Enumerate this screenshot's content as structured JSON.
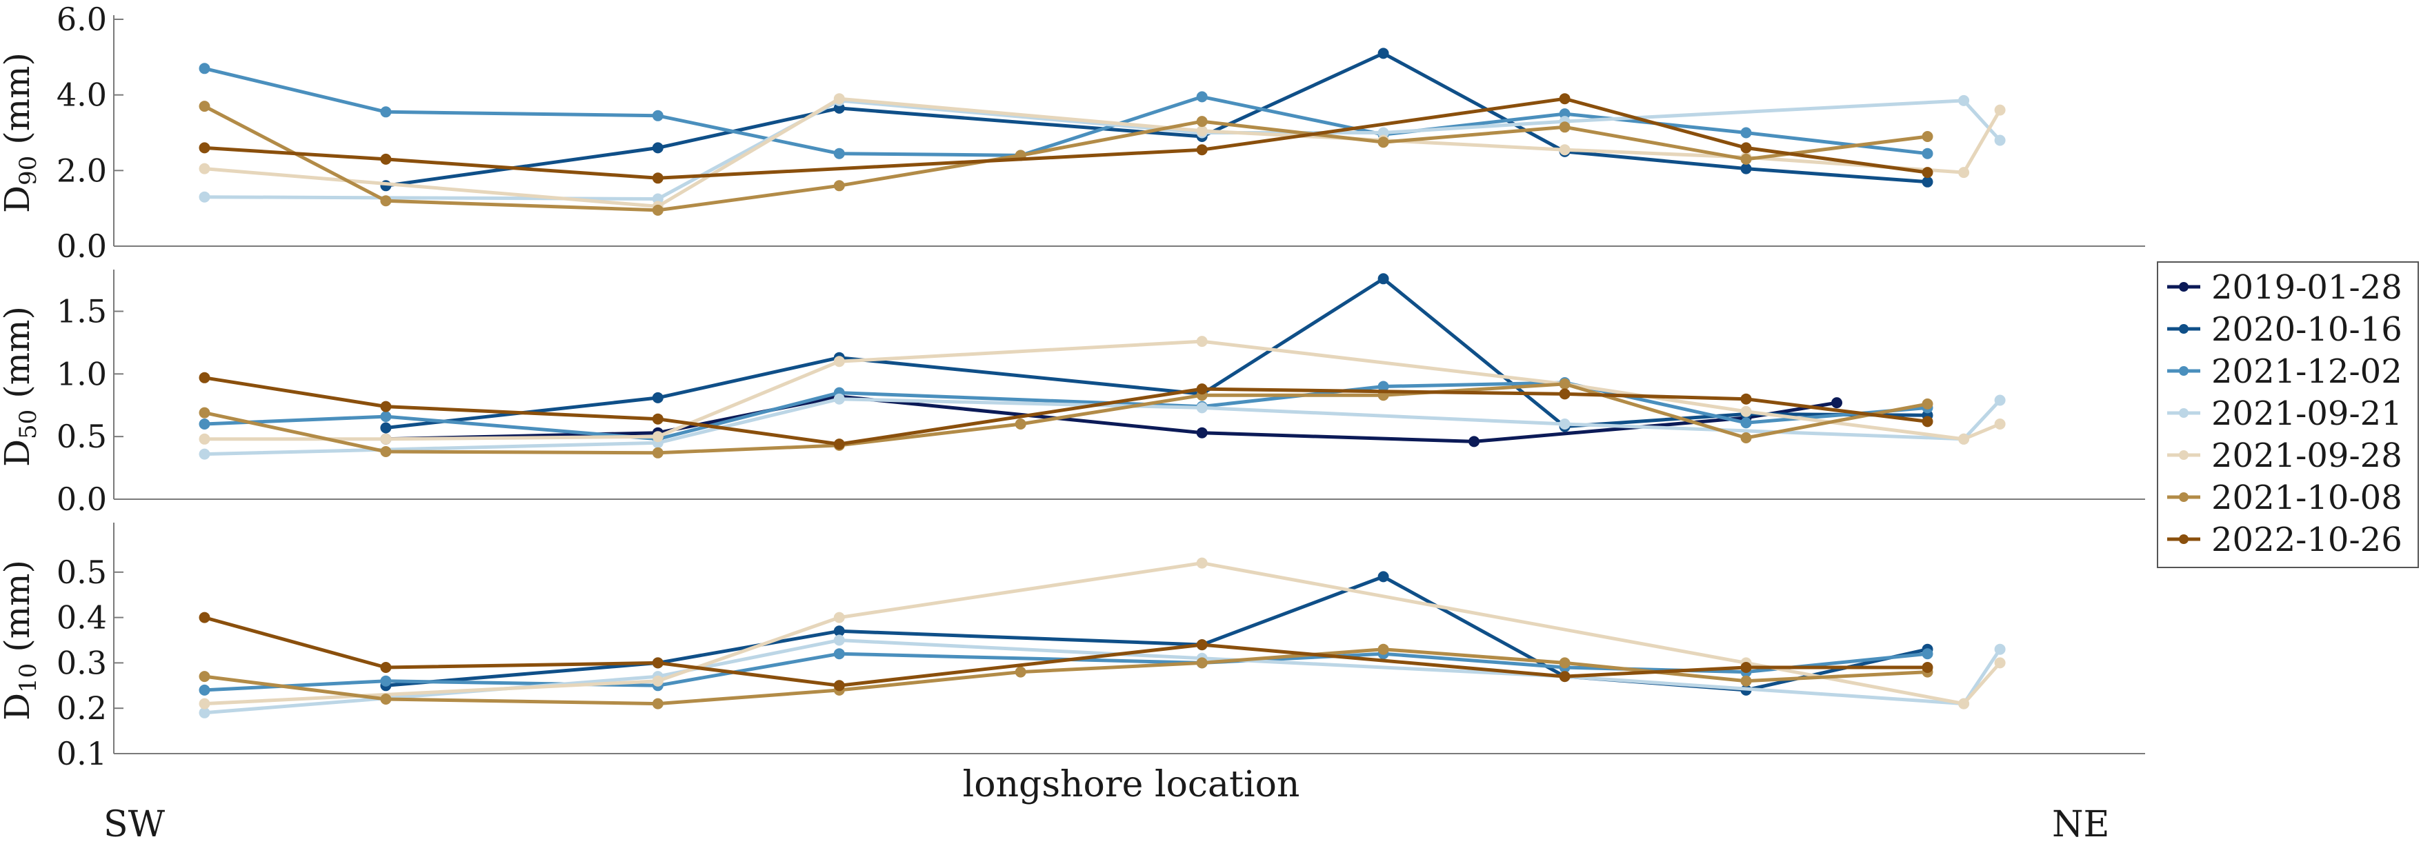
{
  "chart_data": {
    "type": "line",
    "xlabel": "longshore location",
    "x_end_labels": [
      "SW",
      "NE"
    ],
    "legend_placement": "right",
    "grid": false,
    "series_names": [
      "2019-01-28",
      "2020-10-16",
      "2021-12-02",
      "2021-09-21",
      "2021-09-28",
      "2021-10-08",
      "2022-10-26"
    ],
    "series_colors": [
      "#0b1a57",
      "#0f4f88",
      "#4a8fbd",
      "#bcd6e6",
      "#e6d6bb",
      "#b28b47",
      "#8a4f0c"
    ],
    "panels": [
      {
        "ylabel_base": "D",
        "ylabel_sub": "90",
        "ylabel_unit": " (mm)",
        "ylim": [
          0,
          6
        ],
        "yticks": [
          "0.0",
          "2.0",
          "4.0",
          "6.0"
        ],
        "ytick_values": [
          0,
          2,
          4,
          6
        ],
        "series": [
          {
            "name": "2019-01-28",
            "points": []
          },
          {
            "name": "2020-10-16",
            "points": [
              [
                1.5,
                1.6
              ],
              [
                3,
                2.6
              ],
              [
                4,
                3.65
              ],
              [
                6,
                2.9
              ],
              [
                7,
                5.1
              ],
              [
                8,
                2.5
              ],
              [
                9,
                2.05
              ],
              [
                10,
                1.7
              ]
            ]
          },
          {
            "name": "2021-12-02",
            "points": [
              [
                0.5,
                4.7
              ],
              [
                1.5,
                3.55
              ],
              [
                3,
                3.45
              ],
              [
                4,
                2.45
              ],
              [
                5,
                2.4
              ],
              [
                6,
                3.95
              ],
              [
                7,
                2.95
              ],
              [
                8,
                3.5
              ],
              [
                9,
                3.0
              ],
              [
                10,
                2.45
              ]
            ]
          },
          {
            "name": "2021-09-21",
            "points": [
              [
                0.5,
                1.3
              ],
              [
                3,
                1.25
              ],
              [
                4,
                3.85
              ],
              [
                6,
                3.0
              ],
              [
                7,
                3.0
              ],
              [
                8,
                3.3
              ],
              [
                10.2,
                3.85
              ],
              [
                10.4,
                2.8
              ]
            ]
          },
          {
            "name": "2021-09-28",
            "points": [
              [
                0.5,
                2.05
              ],
              [
                3,
                1.05
              ],
              [
                4,
                3.9
              ],
              [
                6,
                3.05
              ],
              [
                7,
                2.8
              ],
              [
                8,
                2.55
              ],
              [
                9,
                2.35
              ],
              [
                10.2,
                1.95
              ],
              [
                10.4,
                3.6
              ]
            ]
          },
          {
            "name": "2021-10-08",
            "points": [
              [
                0.5,
                3.7
              ],
              [
                1.5,
                1.2
              ],
              [
                3,
                0.95
              ],
              [
                4,
                1.6
              ],
              [
                5,
                2.4
              ],
              [
                6,
                3.3
              ],
              [
                7,
                2.75
              ],
              [
                8,
                3.15
              ],
              [
                9,
                2.3
              ],
              [
                10,
                2.9
              ]
            ]
          },
          {
            "name": "2022-10-26",
            "points": [
              [
                0.5,
                2.6
              ],
              [
                1.5,
                2.3
              ],
              [
                3,
                1.8
              ],
              [
                6,
                2.55
              ],
              [
                8,
                3.9
              ],
              [
                9,
                2.6
              ],
              [
                10,
                1.95
              ]
            ]
          }
        ]
      },
      {
        "ylabel_base": "D",
        "ylabel_sub": "50",
        "ylabel_unit": " (mm)",
        "ylim": [
          0,
          1.8
        ],
        "yticks": [
          "0.0",
          "0.5",
          "1.0",
          "1.5"
        ],
        "ytick_values": [
          0,
          0.5,
          1.0,
          1.5
        ],
        "series": [
          {
            "name": "2019-01-28",
            "points": [
              [
                1.5,
                0.48
              ],
              [
                3,
                0.53
              ],
              [
                4,
                0.82
              ],
              [
                6,
                0.53
              ],
              [
                7.5,
                0.46
              ],
              [
                9,
                0.65
              ],
              [
                9.5,
                0.77
              ]
            ]
          },
          {
            "name": "2020-10-16",
            "points": [
              [
                1.5,
                0.57
              ],
              [
                3,
                0.81
              ],
              [
                4,
                1.13
              ],
              [
                6,
                0.84
              ],
              [
                7,
                1.76
              ],
              [
                8,
                0.58
              ],
              [
                9,
                0.68
              ],
              [
                10,
                0.67
              ]
            ]
          },
          {
            "name": "2021-12-02",
            "points": [
              [
                0.5,
                0.6
              ],
              [
                1.5,
                0.66
              ],
              [
                3,
                0.48
              ],
              [
                4,
                0.85
              ],
              [
                6,
                0.74
              ],
              [
                7,
                0.9
              ],
              [
                8,
                0.93
              ],
              [
                9,
                0.61
              ],
              [
                10,
                0.73
              ]
            ]
          },
          {
            "name": "2021-09-21",
            "points": [
              [
                0.5,
                0.36
              ],
              [
                3,
                0.45
              ],
              [
                4,
                0.8
              ],
              [
                6,
                0.73
              ],
              [
                8,
                0.6
              ],
              [
                10.2,
                0.48
              ],
              [
                10.4,
                0.79
              ]
            ]
          },
          {
            "name": "2021-09-28",
            "points": [
              [
                0.5,
                0.48
              ],
              [
                1.5,
                0.48
              ],
              [
                3,
                0.5
              ],
              [
                4,
                1.1
              ],
              [
                6,
                1.26
              ],
              [
                8,
                0.92
              ],
              [
                9,
                0.7
              ],
              [
                10.2,
                0.48
              ],
              [
                10.4,
                0.6
              ]
            ]
          },
          {
            "name": "2021-10-08",
            "points": [
              [
                0.5,
                0.69
              ],
              [
                1.5,
                0.38
              ],
              [
                3,
                0.37
              ],
              [
                4,
                0.43
              ],
              [
                5,
                0.6
              ],
              [
                6,
                0.83
              ],
              [
                7,
                0.83
              ],
              [
                8,
                0.92
              ],
              [
                9,
                0.49
              ],
              [
                10,
                0.76
              ]
            ]
          },
          {
            "name": "2022-10-26",
            "points": [
              [
                0.5,
                0.97
              ],
              [
                1.5,
                0.74
              ],
              [
                3,
                0.64
              ],
              [
                4,
                0.44
              ],
              [
                6,
                0.88
              ],
              [
                8,
                0.84
              ],
              [
                9,
                0.8
              ],
              [
                10,
                0.62
              ]
            ]
          }
        ]
      },
      {
        "ylabel_base": "D",
        "ylabel_sub": "10",
        "ylabel_unit": " (mm)",
        "ylim": [
          0.1,
          0.6
        ],
        "yticks": [
          "0.1",
          "0.2",
          "0.3",
          "0.4",
          "0.5"
        ],
        "ytick_values": [
          0.1,
          0.2,
          0.3,
          0.4,
          0.5
        ],
        "series": [
          {
            "name": "2019-01-28",
            "points": []
          },
          {
            "name": "2020-10-16",
            "points": [
              [
                1.5,
                0.25
              ],
              [
                3,
                0.3
              ],
              [
                4,
                0.37
              ],
              [
                6,
                0.34
              ],
              [
                7,
                0.49
              ],
              [
                8,
                0.27
              ],
              [
                9,
                0.24
              ],
              [
                10,
                0.33
              ]
            ]
          },
          {
            "name": "2021-12-02",
            "points": [
              [
                0.5,
                0.24
              ],
              [
                1.5,
                0.26
              ],
              [
                3,
                0.25
              ],
              [
                4,
                0.32
              ],
              [
                6,
                0.3
              ],
              [
                7,
                0.32
              ],
              [
                8,
                0.29
              ],
              [
                9,
                0.28
              ],
              [
                10,
                0.32
              ]
            ]
          },
          {
            "name": "2021-09-21",
            "points": [
              [
                0.5,
                0.19
              ],
              [
                3,
                0.27
              ],
              [
                4,
                0.35
              ],
              [
                6,
                0.31
              ],
              [
                8,
                0.27
              ],
              [
                10.2,
                0.21
              ],
              [
                10.4,
                0.33
              ]
            ]
          },
          {
            "name": "2021-09-28",
            "points": [
              [
                0.5,
                0.21
              ],
              [
                3,
                0.26
              ],
              [
                4,
                0.4
              ],
              [
                6,
                0.52
              ],
              [
                9,
                0.3
              ],
              [
                10.2,
                0.21
              ],
              [
                10.4,
                0.3
              ]
            ]
          },
          {
            "name": "2021-10-08",
            "points": [
              [
                0.5,
                0.27
              ],
              [
                1.5,
                0.22
              ],
              [
                3,
                0.21
              ],
              [
                4,
                0.24
              ],
              [
                5,
                0.28
              ],
              [
                6,
                0.3
              ],
              [
                7,
                0.33
              ],
              [
                8,
                0.3
              ],
              [
                9,
                0.26
              ],
              [
                10,
                0.28
              ]
            ]
          },
          {
            "name": "2022-10-26",
            "points": [
              [
                0.5,
                0.4
              ],
              [
                1.5,
                0.29
              ],
              [
                3,
                0.3
              ],
              [
                4,
                0.25
              ],
              [
                6,
                0.34
              ],
              [
                8,
                0.27
              ],
              [
                9,
                0.29
              ],
              [
                10,
                0.29
              ]
            ]
          }
        ]
      }
    ]
  }
}
